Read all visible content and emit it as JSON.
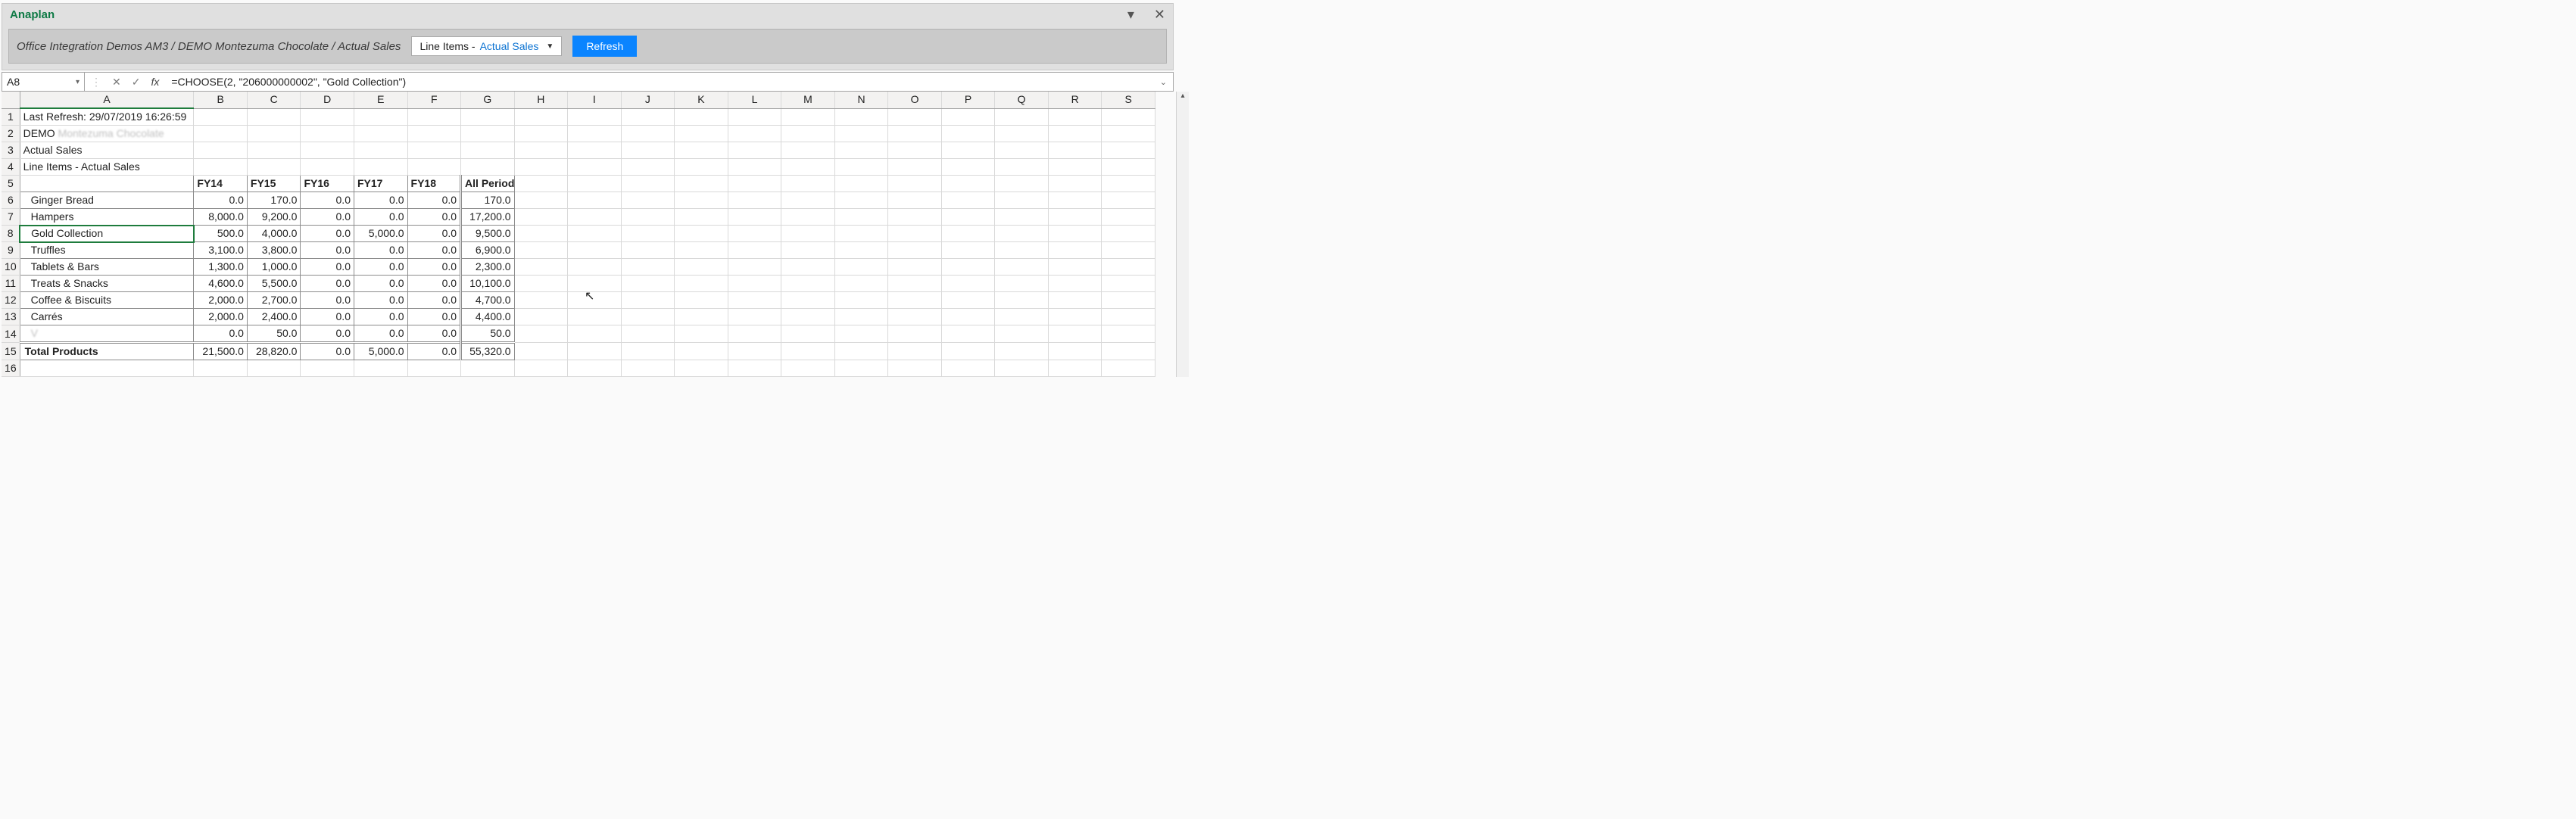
{
  "panel": {
    "title": "Anaplan",
    "breadcrumb": "Office Integration Demos AM3 / DEMO Montezuma Chocolate / Actual Sales",
    "dropdown_prefix": "Line Items - ",
    "dropdown_value": "Actual Sales",
    "refresh_label": "Refresh"
  },
  "formula": {
    "name_box": "A8",
    "text": "=CHOOSE(2, \"206000000002\", \"Gold Collection\")"
  },
  "grid": {
    "column_letters": [
      "A",
      "B",
      "C",
      "D",
      "E",
      "F",
      "G",
      "H",
      "I",
      "J",
      "K",
      "L",
      "M",
      "N",
      "O",
      "P",
      "Q",
      "R",
      "S"
    ],
    "meta_rows": [
      "Last Refresh: 29/07/2019 16:26:59",
      "DEMO Montezuma Chocolate",
      "Actual Sales",
      "Line Items - Actual Sales"
    ],
    "period_headers": [
      "FY14",
      "FY15",
      "FY16",
      "FY17",
      "FY18",
      "All Periods"
    ],
    "rows": [
      {
        "label": "Ginger Bread",
        "indent": true,
        "v": [
          "0.0",
          "170.0",
          "0.0",
          "0.0",
          "0.0",
          "170.0"
        ]
      },
      {
        "label": "Hampers",
        "indent": true,
        "v": [
          "8,000.0",
          "9,200.0",
          "0.0",
          "0.0",
          "0.0",
          "17,200.0"
        ]
      },
      {
        "label": "Gold Collection",
        "indent": true,
        "v": [
          "500.0",
          "4,000.0",
          "0.0",
          "5,000.0",
          "0.0",
          "9,500.0"
        ],
        "selected": true
      },
      {
        "label": "Truffles",
        "indent": true,
        "v": [
          "3,100.0",
          "3,800.0",
          "0.0",
          "0.0",
          "0.0",
          "6,900.0"
        ]
      },
      {
        "label": "Tablets & Bars",
        "indent": true,
        "v": [
          "1,300.0",
          "1,000.0",
          "0.0",
          "0.0",
          "0.0",
          "2,300.0"
        ]
      },
      {
        "label": "Treats & Snacks",
        "indent": true,
        "v": [
          "4,600.0",
          "5,500.0",
          "0.0",
          "0.0",
          "0.0",
          "10,100.0"
        ]
      },
      {
        "label": "Coffee & Biscuits",
        "indent": true,
        "v": [
          "2,000.0",
          "2,700.0",
          "0.0",
          "0.0",
          "0.0",
          "4,700.0"
        ]
      },
      {
        "label": "Carrés",
        "indent": true,
        "v": [
          "2,000.0",
          "2,400.0",
          "0.0",
          "0.0",
          "0.0",
          "4,400.0"
        ]
      },
      {
        "label": "V",
        "indent": true,
        "blur": true,
        "v": [
          "0.0",
          "50.0",
          "0.0",
          "0.0",
          "0.0",
          "50.0"
        ]
      },
      {
        "label": "Total Products",
        "indent": false,
        "bold": true,
        "total": true,
        "v": [
          "21,500.0",
          "28,820.0",
          "0.0",
          "5,000.0",
          "0.0",
          "55,320.0"
        ]
      }
    ],
    "selected_col_letter": "A",
    "selected_row_num": "8",
    "max_row_shown": 16,
    "styling": {
      "data_border": "#8c8c8c",
      "grid_border": "#d9d9d9",
      "header_bg": "#f3f2f1",
      "selection_color": "#1e7c3d",
      "refresh_bg": "#0a84ff",
      "link_blue": "#0c73d2"
    }
  }
}
